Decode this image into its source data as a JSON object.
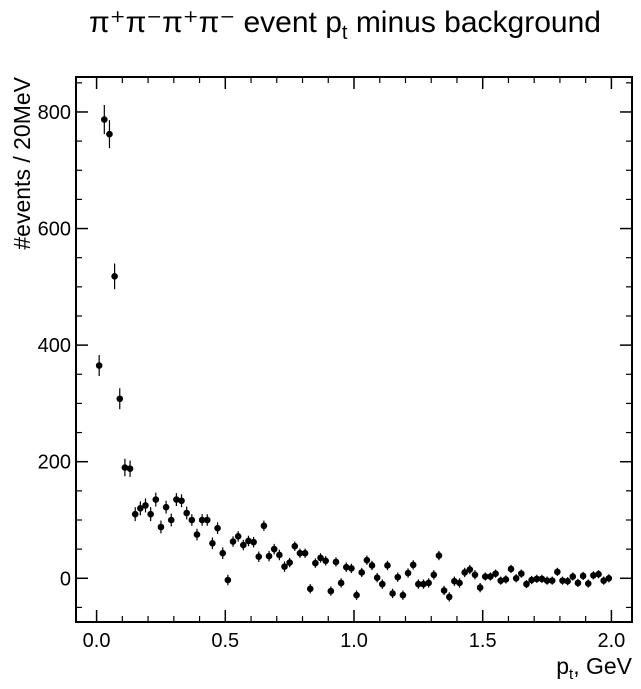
{
  "chart_data": {
    "type": "scatter",
    "title_main": "π⁺π⁻π⁺π⁻ event p",
    "title_sub": "t",
    "title_tail": " minus background",
    "xlabel_main": "p",
    "xlabel_sub": "t",
    "xlabel_tail": ", GeV",
    "ylabel": "#events / 20MeV",
    "xlim": [
      -0.08,
      2.08
    ],
    "ylim": [
      -75,
      860
    ],
    "x_ticks": [
      0.0,
      0.5,
      1.0,
      1.5,
      2.0
    ],
    "x_tick_labels": [
      "0.0",
      "0.5",
      "1.0",
      "1.5",
      "2.0"
    ],
    "y_ticks": [
      0,
      200,
      400,
      600,
      800
    ],
    "y_tick_labels": [
      "0",
      "200",
      "400",
      "600",
      "800"
    ],
    "x_minor_step": 0.1,
    "y_minor_step": 50,
    "marker_color": "#000000",
    "x": [
      0.01,
      0.03,
      0.05,
      0.07,
      0.09,
      0.11,
      0.13,
      0.15,
      0.17,
      0.19,
      0.21,
      0.23,
      0.25,
      0.27,
      0.29,
      0.31,
      0.33,
      0.35,
      0.37,
      0.39,
      0.41,
      0.43,
      0.45,
      0.47,
      0.49,
      0.51,
      0.53,
      0.55,
      0.57,
      0.59,
      0.61,
      0.63,
      0.65,
      0.67,
      0.69,
      0.71,
      0.73,
      0.75,
      0.77,
      0.79,
      0.81,
      0.83,
      0.85,
      0.87,
      0.89,
      0.91,
      0.93,
      0.95,
      0.97,
      0.99,
      1.01,
      1.03,
      1.05,
      1.07,
      1.09,
      1.11,
      1.13,
      1.15,
      1.17,
      1.19,
      1.21,
      1.23,
      1.25,
      1.27,
      1.29,
      1.31,
      1.33,
      1.35,
      1.37,
      1.39,
      1.41,
      1.43,
      1.45,
      1.47,
      1.49,
      1.51,
      1.53,
      1.55,
      1.57,
      1.59,
      1.61,
      1.63,
      1.65,
      1.67,
      1.69,
      1.71,
      1.73,
      1.75,
      1.77,
      1.79,
      1.81,
      1.83,
      1.85,
      1.87,
      1.89,
      1.91,
      1.93,
      1.95,
      1.97,
      1.99
    ],
    "y": [
      365,
      787,
      762,
      518,
      308,
      190,
      188,
      110,
      120,
      125,
      110,
      135,
      88,
      122,
      100,
      135,
      133,
      112,
      100,
      75,
      100,
      100,
      60,
      86,
      43,
      -3,
      63,
      72,
      57,
      64,
      62,
      37,
      90,
      38,
      50,
      40,
      20,
      27,
      55,
      43,
      43,
      -18,
      26,
      35,
      30,
      -22,
      28,
      -8,
      19,
      17,
      -29,
      10,
      31,
      22,
      1,
      -10,
      22,
      -26,
      2,
      -29,
      9,
      23,
      -10,
      -10,
      -8,
      6,
      39,
      -21,
      -32,
      -5,
      -8,
      10,
      15,
      6,
      -16,
      3,
      3,
      8,
      -4,
      -2,
      16,
      0,
      8,
      -10,
      -3,
      -1,
      -1,
      -4,
      -4,
      11,
      -4,
      -5,
      3,
      -8,
      4,
      -9,
      5,
      7,
      -4,
      0
    ],
    "yerr": [
      18,
      25,
      24,
      22,
      18,
      15,
      14,
      12,
      12,
      12,
      12,
      12,
      11,
      11,
      11,
      11,
      11,
      11,
      10,
      10,
      10,
      10,
      10,
      10,
      10,
      9,
      9,
      9,
      9,
      9,
      9,
      9,
      9,
      9,
      9,
      9,
      9,
      8,
      8,
      8,
      8,
      8,
      8,
      8,
      8,
      8,
      8,
      8,
      8,
      8,
      8,
      8,
      8,
      8,
      8,
      8,
      8,
      8,
      8,
      8,
      8,
      8,
      8,
      8,
      8,
      8,
      8,
      8,
      8,
      8,
      8,
      8,
      8,
      8,
      8,
      7,
      7,
      7,
      7,
      7,
      7,
      7,
      7,
      7,
      7,
      7,
      7,
      7,
      7,
      7,
      7,
      7,
      7,
      7,
      7,
      7,
      7,
      7,
      7,
      7
    ]
  }
}
